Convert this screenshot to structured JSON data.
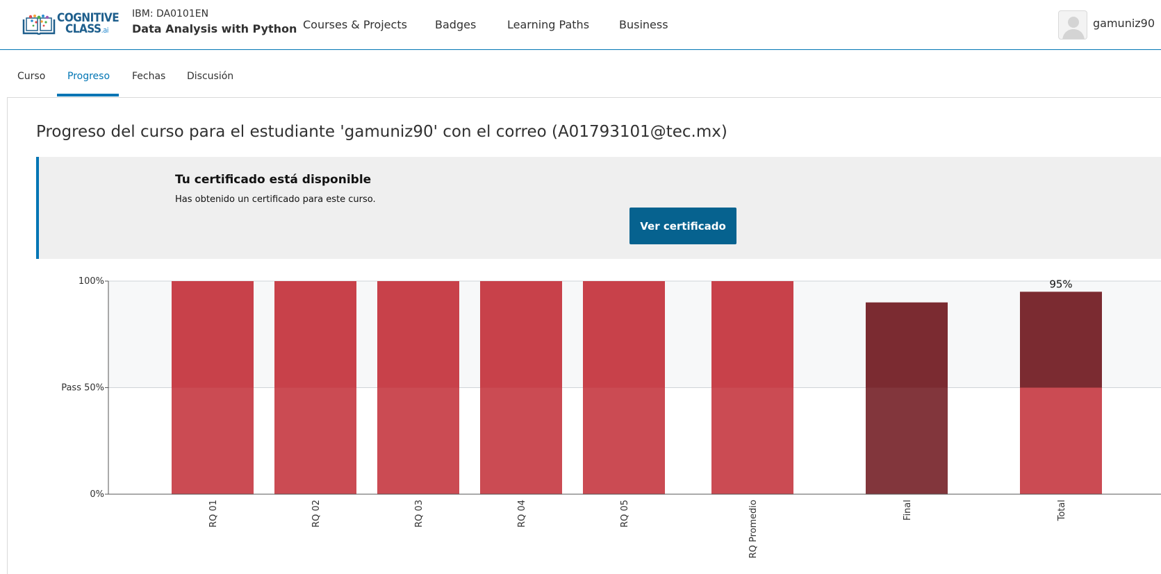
{
  "header": {
    "logo": {
      "line1": "COGNITIVE",
      "line2": "CLASS",
      "suffix": ".ai"
    },
    "course_code": "IBM: DA0101EN",
    "course_name": "Data Analysis with Python",
    "nav": [
      "Courses & Projects",
      "Badges",
      "Learning Paths",
      "Business"
    ],
    "username": "gamuniz90",
    "icons": {
      "avatar": "user-avatar-icon"
    }
  },
  "tabs": [
    "Curso",
    "Progreso",
    "Fechas",
    "Discusión"
  ],
  "active_tab": "Progreso",
  "page_title": "Progreso del curso para el estudiante 'gamuniz90' con el correo (A01793101@tec.mx)",
  "certificate": {
    "title": "Tu certificado está disponible",
    "description": "Has obtenido un certificado para este curso.",
    "button": "Ver certificado"
  },
  "chart_data": {
    "type": "bar",
    "y_ticks": [
      "0%",
      "Pass 50%",
      "100%"
    ],
    "ylim": [
      0,
      100
    ],
    "pass_threshold": 50,
    "categories": [
      "RQ 01",
      "RQ 02",
      "RQ 03",
      "RQ 04",
      "RQ 05",
      "RQ Promedio",
      "Final",
      "Total"
    ],
    "values": [
      100,
      100,
      100,
      100,
      100,
      100,
      90,
      95
    ],
    "data_labels": [
      "",
      "",
      "",
      "",
      "",
      "",
      "",
      "95%"
    ],
    "grid": true,
    "colors": {
      "rq": "#c8414a",
      "final": "#7b2b31",
      "total_top": "#7b2b31",
      "total_bottom": "#c8414a",
      "band": "#f7f8f9"
    }
  }
}
